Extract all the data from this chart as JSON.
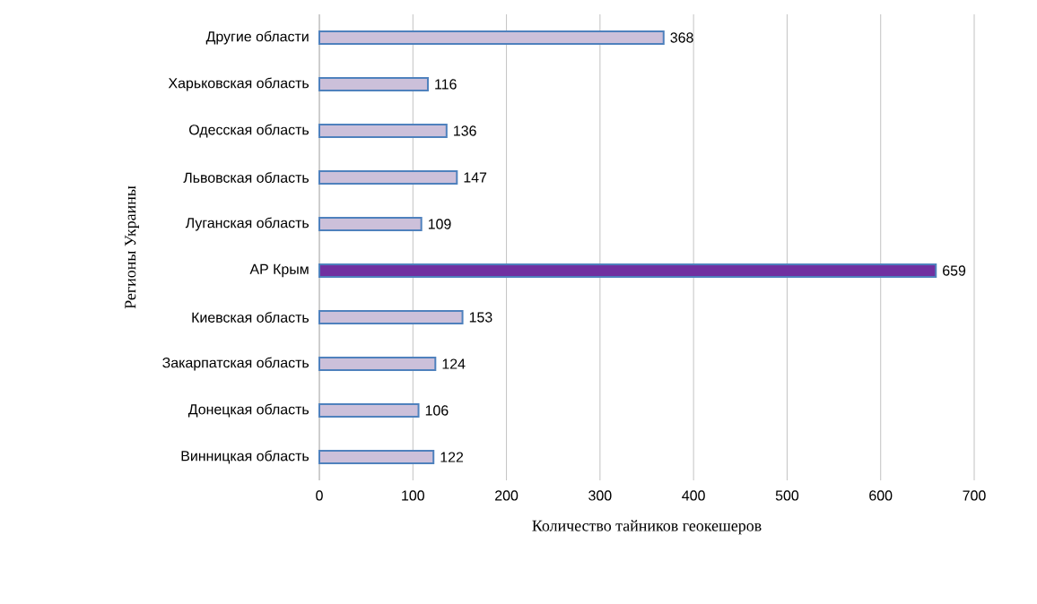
{
  "chart_data": {
    "type": "bar",
    "orientation": "horizontal",
    "xlabel": "Количество тайников геокешеров",
    "ylabel": "Регионы Украины",
    "categories": [
      "Другие области",
      "Харьковская область",
      "Одесская область",
      "Львовская область",
      "Луганская область",
      "АР Крым",
      "Киевская область",
      "Закарпатская область",
      "Донецкая область",
      "Винницкая область"
    ],
    "values": [
      368,
      116,
      136,
      147,
      109,
      659,
      153,
      124,
      106,
      122
    ],
    "colors": [
      "#ccc0da",
      "#ccc0da",
      "#ccc0da",
      "#ccc0da",
      "#ccc0da",
      "#7030a0",
      "#ccc0da",
      "#ccc0da",
      "#ccc0da",
      "#ccc0da"
    ],
    "xlim": [
      0,
      700
    ],
    "xticks": [
      0,
      100,
      200,
      300,
      400,
      500,
      600,
      700
    ],
    "grid": "x",
    "data_labels": true
  }
}
